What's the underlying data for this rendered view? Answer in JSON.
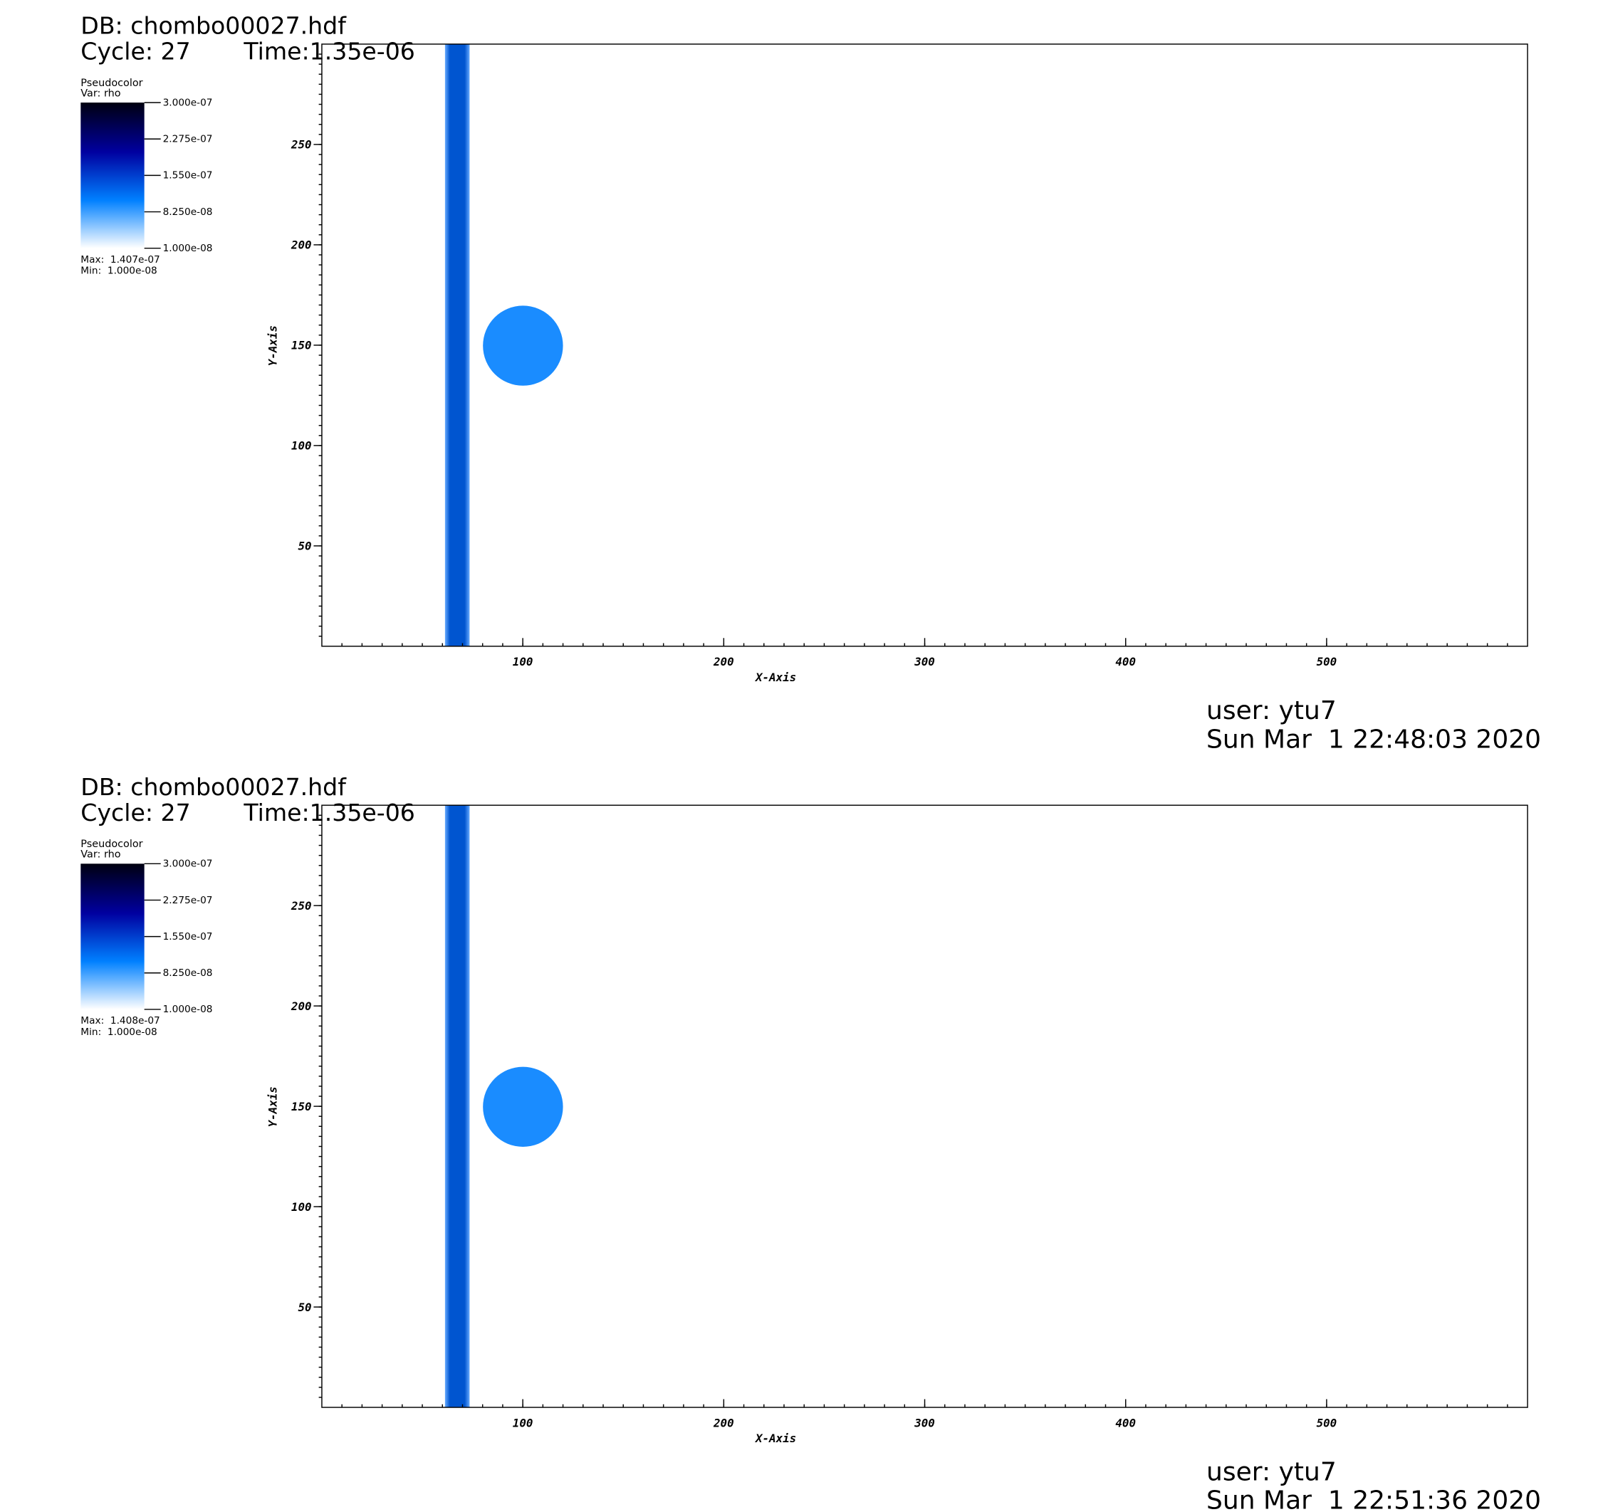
{
  "chart_data": [
    {
      "type": "pseudocolor",
      "db": "DB: chombo00027.hdf",
      "cycle": "Cycle: 27",
      "time": "Time:1.35e-06",
      "plot_label": "Pseudocolor",
      "var": "Var: rho",
      "max": "Max:  1.407e-07",
      "min": "Min:  1.000e-08",
      "x_label": "X-Axis",
      "y_label": "Y-Axis",
      "user": "user: ytu7",
      "date": "Sun Mar  1 22:48:03 2020",
      "xlim": [
        0,
        600
      ],
      "ylim": [
        0,
        300
      ],
      "xticks": [
        100,
        200,
        300,
        400,
        500
      ],
      "yticks": [
        50,
        100,
        150,
        200,
        250
      ],
      "clim": [
        1e-08,
        3e-07
      ],
      "cticks": [
        {
          "value": 3e-07,
          "label": "3.000e-07"
        },
        {
          "value": 2.275e-07,
          "label": "2.275e-07"
        },
        {
          "value": 1.55e-07,
          "label": "1.550e-07"
        },
        {
          "value": 8.25e-08,
          "label": "8.250e-08"
        },
        {
          "value": 1e-08,
          "label": "1.000e-08"
        }
      ]
    },
    {
      "type": "pseudocolor",
      "db": "DB: chombo00027.hdf",
      "cycle": "Cycle: 27",
      "time": "Time:1.35e-06",
      "plot_label": "Pseudocolor",
      "var": "Var: rho",
      "max": "Max:  1.408e-07",
      "min": "Min:  1.000e-08",
      "x_label": "X-Axis",
      "y_label": "Y-Axis",
      "user": "user: ytu7",
      "date": "Sun Mar  1 22:51:36 2020",
      "xlim": [
        0,
        600
      ],
      "ylim": [
        0,
        300
      ],
      "xticks": [
        100,
        200,
        300,
        400,
        500
      ],
      "yticks": [
        50,
        100,
        150,
        200,
        250
      ],
      "clim": [
        1e-08,
        3e-07
      ],
      "cticks": [
        {
          "value": 3e-07,
          "label": "3.000e-07"
        },
        {
          "value": 2.275e-07,
          "label": "2.275e-07"
        },
        {
          "value": 1.55e-07,
          "label": "1.550e-07"
        },
        {
          "value": 8.25e-08,
          "label": "8.250e-08"
        },
        {
          "value": 1e-08,
          "label": "1.000e-08"
        }
      ]
    }
  ]
}
